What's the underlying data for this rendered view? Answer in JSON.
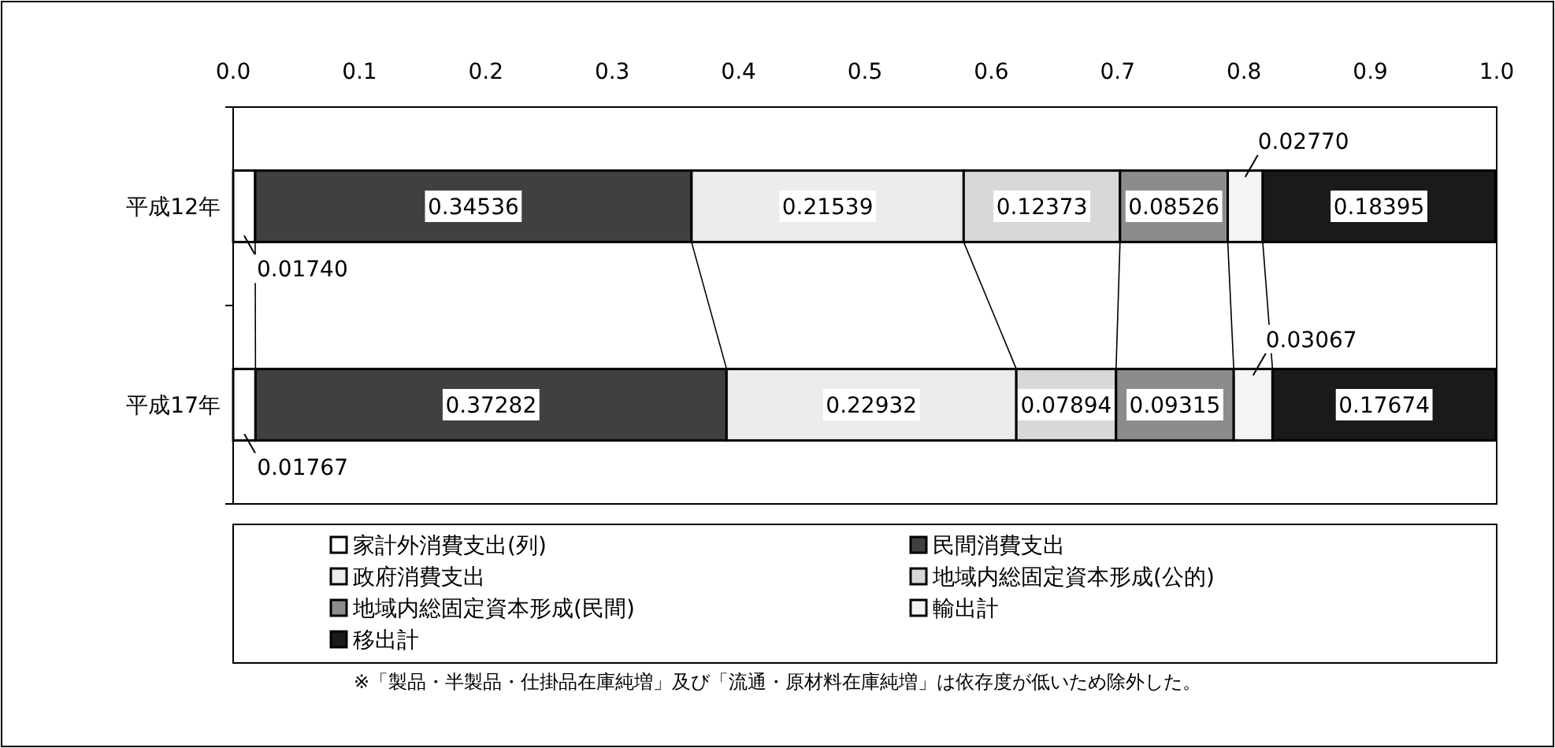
{
  "chart_data": {
    "type": "bar",
    "orientation": "horizontal",
    "stacked": true,
    "legend": "bottom",
    "grid": false,
    "categories": [
      "平成12年",
      "平成17年"
    ],
    "xlim": [
      0,
      1
    ],
    "xticks": [
      {
        "value": 0,
        "label": "0.0"
      },
      0.1,
      0.2,
      0.3,
      0.4,
      0.5,
      0.6,
      0.7,
      0.8,
      0.9,
      {
        "value": 1,
        "label": "1.0"
      }
    ],
    "series": [
      {
        "name": "家計外消費支出(列)",
        "color": "#ffffff",
        "values": [
          0.0174,
          0.01767
        ],
        "value_labels": [
          "0.01740",
          "0.01767"
        ]
      },
      {
        "name": "民間消費支出",
        "color": "#404040",
        "values": [
          0.34536,
          0.37282
        ],
        "value_labels": [
          "0.34536",
          "0.37282"
        ]
      },
      {
        "name": "政府消費支出",
        "color": "#ececec",
        "values": [
          0.21539,
          0.22932
        ],
        "value_labels": [
          "0.21539",
          "0.22932"
        ]
      },
      {
        "name": "地域内総固定資本形成(公的)",
        "color": "#d8d8d8",
        "values": [
          0.12373,
          0.07894
        ],
        "value_labels": [
          "0.12373",
          "0.07894"
        ]
      },
      {
        "name": "地域内総固定資本形成(民間)",
        "color": "#8c8c8c",
        "values": [
          0.08526,
          0.09315
        ],
        "value_labels": [
          "0.08526",
          "0.09315"
        ]
      },
      {
        "name": "輸出計",
        "color": "#f4f4f4",
        "values": [
          0.0277,
          0.03067
        ],
        "value_labels": [
          "0.02770",
          "0.03067"
        ]
      },
      {
        "name": "移出計",
        "color": "#1a1a1a",
        "values": [
          0.18395,
          0.17674
        ],
        "value_labels": [
          "0.18395",
          "0.17674"
        ]
      }
    ],
    "annotations": [
      "※「製品・半製品・仕掛品在庫純増」及び「流通・原材料在庫純増」は依存度が低いため除外した。"
    ]
  }
}
